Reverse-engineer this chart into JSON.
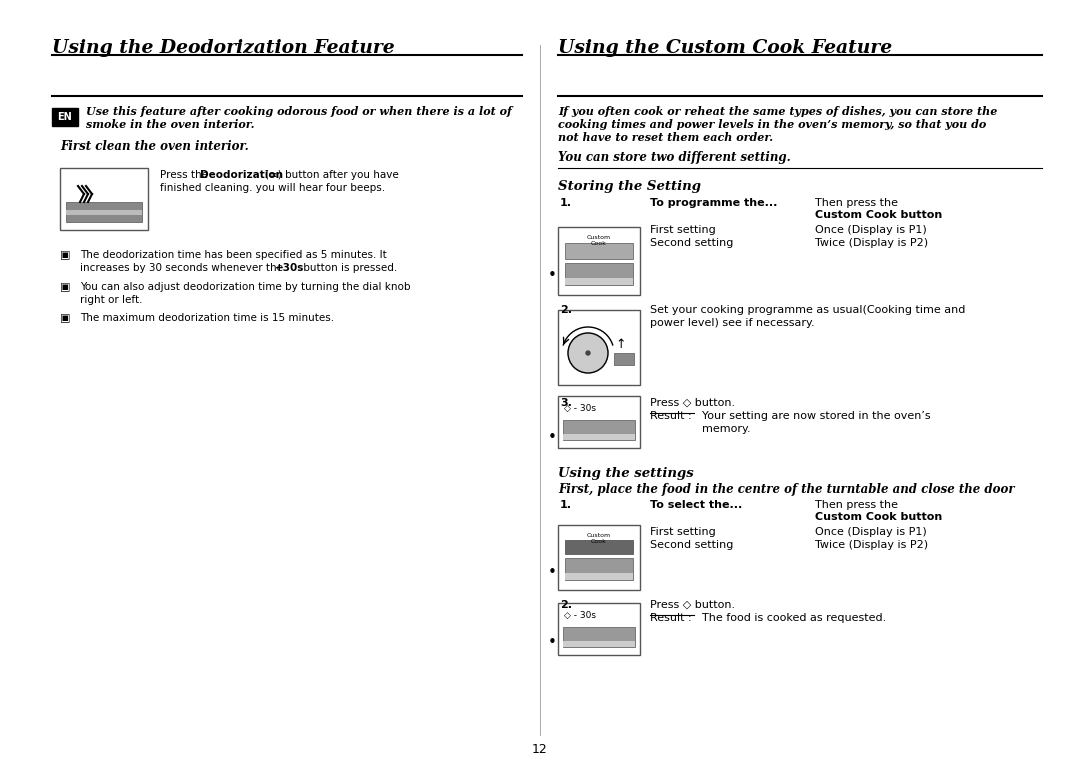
{
  "bg_color": "#ffffff",
  "page_number": "12",
  "left_title": "Using the Deodorization Feature",
  "right_title": "Using the Custom Cook Feature",
  "en_label": "EN",
  "left_intro": "Use this feature after cooking odorous food or when there is a lot of smoke in the oven interior.",
  "left_sub1": "First clean the oven interior.",
  "left_bullet1": "The deodorization time has been specified as 5 minutes. It\nincreases by 30 seconds whenever the +30s button is pressed.",
  "left_bullet1_bold": "+30s",
  "left_bullet2": "You can also adjust deodorization time by turning the dial knob\nright or left.",
  "left_bullet3": "The maximum deodorization time is 15 minutes.",
  "right_intro": "If you often cook or reheat the same types of dishes, you can store the\ncooking times and power levels in the oven’s memory, so that you do\nnot have to reset them each order.",
  "right_sub1": "You can store two different setting.",
  "right_section1": "Storing the Setting",
  "right_step1_col1": "To programme the...",
  "right_step1_col2a": "Then press the",
  "right_step1_col2b": "Custom Cook button",
  "right_step1_row1_c1": "First setting",
  "right_step1_row1_c2": "Once (Display is P1)",
  "right_step1_row2_c1": "Second setting",
  "right_step1_row2_c2": "Twice (Display is P2)",
  "right_step2": "Set your cooking programme as usual(Cooking time and\npower level) see if necessary.",
  "right_section2": "Using the settings",
  "right_sub2": "First, place the food in the centre of the turntable and close the door",
  "right_step4_col1": "To select the...",
  "right_step4_col2a": "Then press the",
  "right_step4_col2b": "Custom Cook button",
  "right_step4_row1_c1": "First setting",
  "right_step4_row1_c2": "Once (Display is P1)",
  "right_step4_row2_c1": "Second setting",
  "right_step4_row2_c2": "Twice (Display is P2)",
  "bullet_symbol": "▣",
  "deodorization_bold": "Deodorization",
  "press_text1": "Press the ",
  "press_text2": "(≡) button after you have",
  "press_text3": "finished cleaning. you will hear four beeps."
}
